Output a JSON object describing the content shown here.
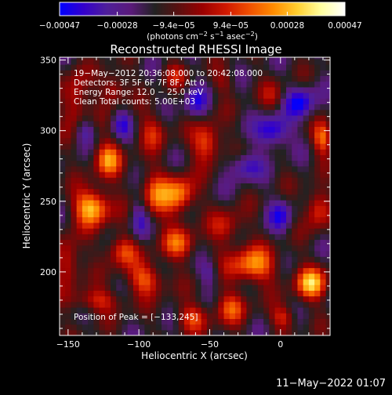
{
  "chart_data": {
    "type": "heatmap",
    "title": "Reconstructed RHESSI Image",
    "xlabel": "Heliocentric X (arcsec)",
    "ylabel": "Heliocentric Y (arcsec)",
    "xlim": [
      -156,
      35
    ],
    "ylim": [
      155,
      352
    ],
    "x_ticks": [
      -150,
      -100,
      -50,
      0
    ],
    "x_tick_labels": [
      "−150",
      "−100",
      "−50",
      "0"
    ],
    "y_ticks": [
      200,
      250,
      300,
      350
    ],
    "y_tick_labels": [
      "200",
      "250",
      "300",
      "350"
    ],
    "colorbar": {
      "min": -0.00047,
      "max": 0.00047,
      "tick_values": [
        -0.00047,
        -0.00028,
        -9.4e-05,
        9.4e-05,
        0.00028,
        0.00047
      ],
      "tick_labels": [
        "−0.00047",
        "−0.00028",
        "−9.4e−05",
        "9.4e−05",
        "0.00028",
        "0.00047"
      ],
      "units_prefix": "(photons cm",
      "units_exp1": "−2",
      "units_mid": " s",
      "units_exp2": "−1",
      "units_mid2": " asec",
      "units_exp3": "−2",
      "units_suffix": ")",
      "colors": [
        "#0000ff",
        "#3300cc",
        "#4f1f9a",
        "#5a1a7a",
        "#222222",
        "#5a1010",
        "#9a0000",
        "#d01800",
        "#f05000",
        "#ff8c00",
        "#ffcf30",
        "#ffffa0",
        "#ffffff"
      ]
    },
    "annotations": [
      "19−May−2012 20:36:08.000 to 20:42:08.000",
      "Detectors: 3F 5F 6F 7F 8F, Att 0",
      "Energy Range: 12.0 − 25.0 keV",
      "Clean     Total counts: 5.00E+03"
    ],
    "peak_text": "Position of Peak = [−133,245]",
    "peak_position": [
      -133,
      245
    ],
    "blobs": [
      {
        "x": -133,
        "y": 246,
        "sx": 9,
        "sy": 9,
        "a": 1.0
      },
      {
        "x": -122,
        "y": 280,
        "sx": 7,
        "sy": 9,
        "a": 0.75
      },
      {
        "x": -145,
        "y": 322,
        "sx": 6,
        "sy": 14,
        "a": 0.55
      },
      {
        "x": -118,
        "y": 330,
        "sx": 6,
        "sy": 8,
        "a": 0.5
      },
      {
        "x": -150,
        "y": 208,
        "sx": 6,
        "sy": 12,
        "a": 0.55
      },
      {
        "x": -112,
        "y": 215,
        "sx": 8,
        "sy": 8,
        "a": 0.6
      },
      {
        "x": -88,
        "y": 254,
        "sx": 10,
        "sy": 12,
        "a": 0.65
      },
      {
        "x": -90,
        "y": 300,
        "sx": 7,
        "sy": 9,
        "a": 0.45
      },
      {
        "x": -70,
        "y": 255,
        "sx": 7,
        "sy": 9,
        "a": 0.7
      },
      {
        "x": -52,
        "y": 292,
        "sx": 7,
        "sy": 10,
        "a": 0.7
      },
      {
        "x": -72,
        "y": 220,
        "sx": 9,
        "sy": 8,
        "a": 0.6
      },
      {
        "x": -95,
        "y": 195,
        "sx": 9,
        "sy": 8,
        "a": 0.65
      },
      {
        "x": -20,
        "y": 205,
        "sx": 12,
        "sy": 9,
        "a": 0.8
      },
      {
        "x": -35,
        "y": 175,
        "sx": 8,
        "sy": 8,
        "a": 0.55
      },
      {
        "x": -38,
        "y": 232,
        "sx": 8,
        "sy": 9,
        "a": 0.45
      },
      {
        "x": 22,
        "y": 192,
        "sx": 8,
        "sy": 8,
        "a": 0.9
      },
      {
        "x": 26,
        "y": 245,
        "sx": 6,
        "sy": 10,
        "a": 0.6
      },
      {
        "x": 30,
        "y": 295,
        "sx": 5,
        "sy": 8,
        "a": 0.7
      },
      {
        "x": -130,
        "y": 180,
        "sx": 12,
        "sy": 6,
        "a": 0.5
      },
      {
        "x": -62,
        "y": 168,
        "sx": 8,
        "sy": 7,
        "a": 0.55
      },
      {
        "x": 2,
        "y": 168,
        "sx": 6,
        "sy": 6,
        "a": 0.5
      },
      {
        "x": -5,
        "y": 325,
        "sx": 6,
        "sy": 8,
        "a": 0.3
      },
      {
        "x": -40,
        "y": 335,
        "sx": 6,
        "sy": 6,
        "a": 0.25
      },
      {
        "x": -75,
        "y": 340,
        "sx": 6,
        "sy": 6,
        "a": 0.35
      },
      {
        "x": -5,
        "y": 300,
        "sx": 8,
        "sy": 8,
        "a": -0.7
      },
      {
        "x": 15,
        "y": 320,
        "sx": 8,
        "sy": 8,
        "a": -0.6
      },
      {
        "x": -25,
        "y": 275,
        "sx": 8,
        "sy": 7,
        "a": -0.5
      },
      {
        "x": -100,
        "y": 240,
        "sx": 5,
        "sy": 12,
        "a": -0.5
      },
      {
        "x": -60,
        "y": 320,
        "sx": 6,
        "sy": 8,
        "a": -0.45
      },
      {
        "x": -112,
        "y": 305,
        "sx": 5,
        "sy": 7,
        "a": -0.4
      },
      {
        "x": -138,
        "y": 300,
        "sx": 5,
        "sy": 6,
        "a": -0.35
      },
      {
        "x": -50,
        "y": 200,
        "sx": 5,
        "sy": 6,
        "a": -0.35
      },
      {
        "x": 0,
        "y": 240,
        "sx": 6,
        "sy": 8,
        "a": -0.45
      }
    ],
    "grid": false,
    "legend": "none"
  },
  "timestamp": "11−May−2022 01:07"
}
